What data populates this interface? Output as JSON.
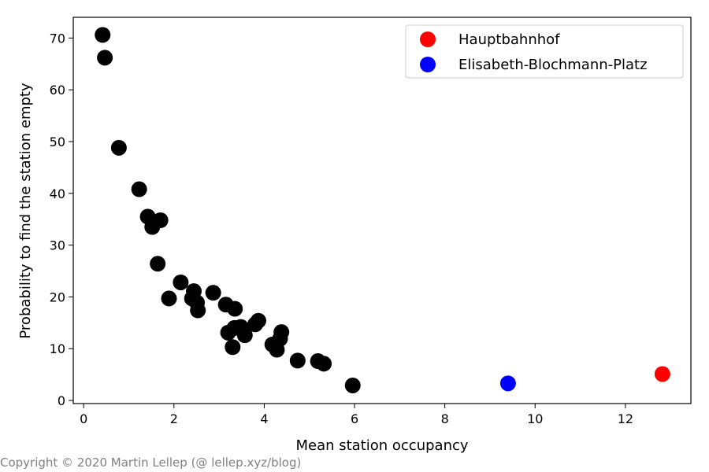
{
  "chart_data": {
    "type": "scatter",
    "title": "",
    "xlabel": "Mean station occupancy",
    "ylabel": "Probability to find the station empty",
    "xlim": [
      -0.23,
      13.45
    ],
    "ylim": [
      -0.6,
      74.0
    ],
    "xticks": [
      0,
      2,
      4,
      6,
      8,
      10,
      12
    ],
    "yticks": [
      0,
      10,
      20,
      30,
      40,
      50,
      60,
      70
    ],
    "grid": false,
    "legend_position": "top-right",
    "series": [
      {
        "color": "#000000",
        "points": [
          [
            0.42,
            70.6
          ],
          [
            0.47,
            66.2
          ],
          [
            0.78,
            48.8
          ],
          [
            1.23,
            40.8
          ],
          [
            1.42,
            35.5
          ],
          [
            1.7,
            34.8
          ],
          [
            1.52,
            33.5
          ],
          [
            1.64,
            26.4
          ],
          [
            2.15,
            22.8
          ],
          [
            2.44,
            21.1
          ],
          [
            2.4,
            19.7
          ],
          [
            1.89,
            19.7
          ],
          [
            2.51,
            18.9
          ],
          [
            2.53,
            17.4
          ],
          [
            2.87,
            20.8
          ],
          [
            3.15,
            18.5
          ],
          [
            3.35,
            17.7
          ],
          [
            3.87,
            15.4
          ],
          [
            3.8,
            14.7
          ],
          [
            3.48,
            14.2
          ],
          [
            3.34,
            14.0
          ],
          [
            3.2,
            13.1
          ],
          [
            3.57,
            12.6
          ],
          [
            4.38,
            13.2
          ],
          [
            4.35,
            11.9
          ],
          [
            4.18,
            10.8
          ],
          [
            4.28,
            9.8
          ],
          [
            3.3,
            10.3
          ],
          [
            4.74,
            7.7
          ],
          [
            5.19,
            7.6
          ],
          [
            5.32,
            7.1
          ],
          [
            5.96,
            2.9
          ]
        ]
      },
      {
        "name": "Hauptbahnhof",
        "color": "#ff0000",
        "points": [
          [
            12.82,
            5.1
          ]
        ]
      },
      {
        "name": "Elisabeth-Blochmann-Platz",
        "color": "#0000ff",
        "points": [
          [
            9.4,
            3.3
          ]
        ]
      }
    ]
  },
  "copyright": "Copyright © 2020 Martin Lellep (@ lellep.xyz/blog)"
}
